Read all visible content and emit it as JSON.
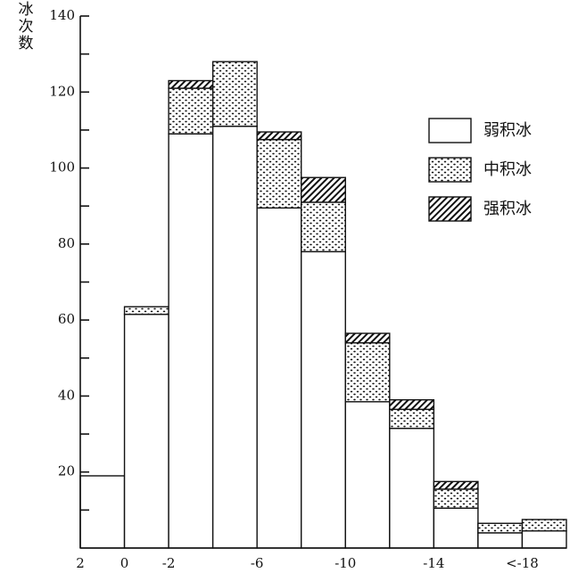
{
  "chart_data": {
    "type": "stacked_bar",
    "ylabel": "积冰次数",
    "x_boundary_labels": [
      "2",
      "0",
      "-2",
      null,
      "-6",
      null,
      "-10",
      null,
      "-14",
      null,
      "<-18",
      null
    ],
    "series": [
      {
        "name": "弱积冰",
        "fill": "white",
        "values": [
          19,
          61.5,
          109,
          111,
          89.5,
          78,
          38.5,
          31.5,
          10.5,
          4,
          4.5
        ]
      },
      {
        "name": "中积冰",
        "fill": "dots",
        "values": [
          0,
          2,
          12,
          17,
          18,
          13,
          15.5,
          5,
          5,
          2.5,
          3
        ]
      },
      {
        "name": "强积冰",
        "fill": "hatch",
        "values": [
          0,
          0,
          2,
          0,
          2,
          6.5,
          2.5,
          2.5,
          2,
          0,
          0
        ]
      }
    ],
    "ylim": [
      0,
      140
    ],
    "yticks": [
      20,
      40,
      60,
      80,
      100,
      120,
      140
    ],
    "yminor_ticks": [
      10,
      30,
      50,
      70,
      90,
      110,
      130
    ]
  }
}
